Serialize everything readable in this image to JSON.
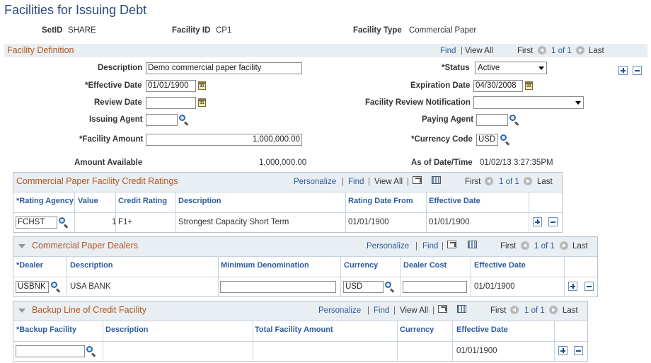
{
  "page": {
    "title": "Facilities for Issuing Debt"
  },
  "header": {
    "setid_label": "SetID",
    "setid_value": "SHARE",
    "facility_id_label": "Facility ID",
    "facility_id_value": "CP1",
    "facility_type_label": "Facility Type",
    "facility_type_value": "Commercial Paper"
  },
  "facility_definition": {
    "title": "Facility Definition",
    "nav": {
      "find": "Find",
      "sep": "|",
      "view_all": "View All",
      "first": "First",
      "count": "1 of 1",
      "last": "Last"
    },
    "fields": {
      "description_label": "Description",
      "description_value": "Demo commercial paper facility",
      "status_label": "*Status",
      "status_value": "Active",
      "effective_date_label": "*Effective Date",
      "effective_date_value": "01/01/1900",
      "expiration_date_label": "Expiration Date",
      "expiration_date_value": "04/30/2008",
      "review_date_label": "Review Date",
      "review_date_value": "",
      "review_notification_label": "Facility Review Notification",
      "review_notification_value": "",
      "issuing_agent_label": "Issuing Agent",
      "issuing_agent_value": "",
      "paying_agent_label": "Paying Agent",
      "paying_agent_value": "",
      "facility_amount_label": "*Facility Amount",
      "facility_amount_value": "1,000,000.00",
      "currency_code_label": "*Currency Code",
      "currency_code_value": "USD",
      "amount_available_label": "Amount Available",
      "amount_available_value": "1,000,000.00",
      "as_of_label": "As of Date/Time",
      "as_of_value": "01/02/13  3:27:35PM"
    }
  },
  "grid_nav": {
    "personalize": "Personalize",
    "sep": "|",
    "find": "Find",
    "view_all": "View All",
    "first": "First",
    "count": "1 of 1",
    "last": "Last"
  },
  "credit_ratings": {
    "title": "Commercial Paper Facility Credit Ratings",
    "columns": [
      "*Rating Agency",
      "Value",
      "Credit Rating",
      "Description",
      "Rating Date From",
      "Effective Date"
    ],
    "row": {
      "rating_agency": "FCHST",
      "value": "1",
      "credit_rating": "F1+",
      "description": "Strongest Capacity Short Term",
      "rating_date_from": "01/01/1900",
      "effective_date": "01/01/1900"
    }
  },
  "dealers": {
    "title": "Commercial Paper Dealers",
    "columns": [
      "*Dealer",
      "Description",
      "Minimum Denomination",
      "Currency",
      "Dealer Cost",
      "Effective Date"
    ],
    "row": {
      "dealer": "USBNK",
      "description": "USA BANK",
      "minimum_denomination": "",
      "currency": "USD",
      "dealer_cost": "",
      "effective_date": "01/01/1900"
    }
  },
  "backup": {
    "title": "Backup Line of Credit Facility",
    "columns": [
      "*Backup Facility",
      "Description",
      "Total Facility Amount",
      "Currency",
      "Effective Date"
    ],
    "row": {
      "backup_facility": "",
      "description": "",
      "total_facility_amount": "",
      "currency": "",
      "effective_date": "01/01/1900"
    }
  }
}
